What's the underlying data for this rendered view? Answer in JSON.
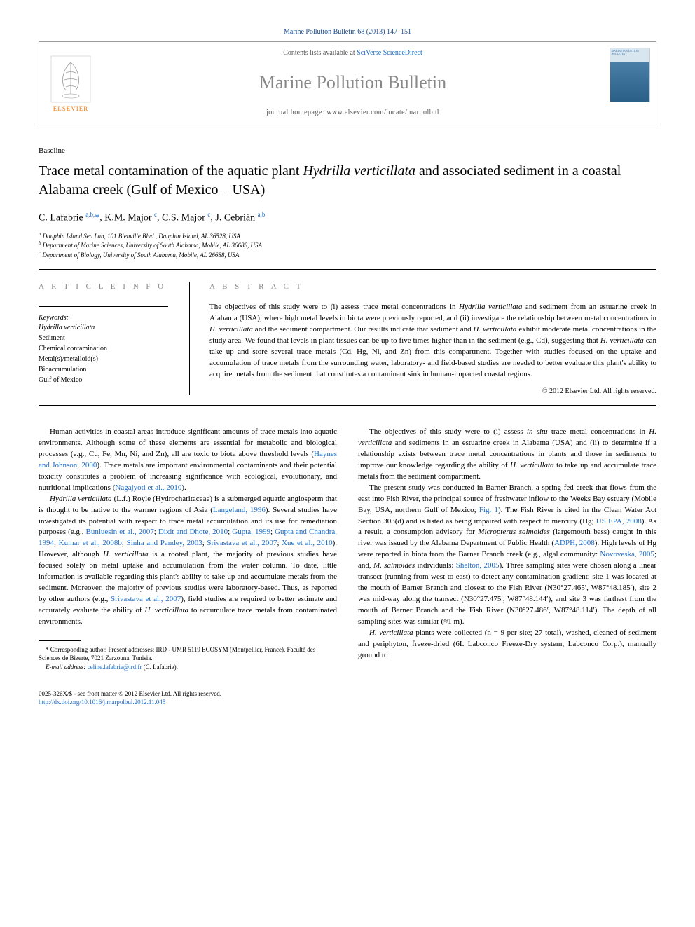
{
  "citation": "Marine Pollution Bulletin 68 (2013) 147–151",
  "header": {
    "contents_prefix": "Contents lists available at ",
    "contents_link": "SciVerse ScienceDirect",
    "journal_title": "Marine Pollution Bulletin",
    "homepage_prefix": "journal homepage: ",
    "homepage_url": "www.elsevier.com/locate/marpolbul",
    "elsevier": "ELSEVIER",
    "cover_text": "MARINE POLLUTION BULLETIN"
  },
  "section": "Baseline",
  "title_parts": {
    "a": "Trace metal contamination of the aquatic plant ",
    "b": "Hydrilla verticillata",
    "c": " and associated sediment in a coastal Alabama creek (Gulf of Mexico – USA)"
  },
  "authors_html": "C. Lafabrie <sup>a,b,</sup><a>*</a>, K.M. Major <sup>c</sup>, C.S. Major <sup>c</sup>, J. Cebrián <sup>a,b</sup>",
  "affiliations": [
    "a Dauphin Island Sea Lab, 101 Bienville Blvd., Dauphin Island, AL 36528, USA",
    "b Department of Marine Sciences, University of South Alabama, Mobile, AL 36688, USA",
    "c Department of Biology, University of South Alabama, Mobile, AL 26688, USA"
  ],
  "info_heading": "A R T I C L E   I N F O",
  "keywords_label": "Keywords:",
  "keywords": [
    "Hydrilla verticillata",
    "Sediment",
    "Chemical contamination",
    "Metal(s)/metalloid(s)",
    "Bioaccumulation",
    "Gulf of Mexico"
  ],
  "abstract_heading": "A B S T R A C T",
  "abstract": "The objectives of this study were to (i) assess trace metal concentrations in Hydrilla verticillata and sediment from an estuarine creek in Alabama (USA), where high metal levels in biota were previously reported, and (ii) investigate the relationship between metal concentrations in H. verticillata and the sediment compartment. Our results indicate that sediment and H. verticillata exhibit moderate metal concentrations in the study area. We found that levels in plant tissues can be up to five times higher than in the sediment (e.g., Cd), suggesting that H. verticillata can take up and store several trace metals (Cd, Hg, Ni, and Zn) from this compartment. Together with studies focused on the uptake and accumulation of trace metals from the surrounding water, laboratory- and field-based studies are needed to better evaluate this plant's ability to acquire metals from the sediment that constitutes a contaminant sink in human-impacted coastal regions.",
  "copyright": "© 2012 Elsevier Ltd. All rights reserved.",
  "body": {
    "left": [
      "Human activities in coastal areas introduce significant amounts of trace metals into aquatic environments. Although some of these elements are essential for metabolic and biological processes (e.g., Cu, Fe, Mn, Ni, and Zn), all are toxic to biota above threshold levels (Haynes and Johnson, 2000). Trace metals are important environmental contaminants and their potential toxicity constitutes a problem of increasing significance with ecological, evolutionary, and nutritional implications (Nagajyoti et al., 2010).",
      "Hydrilla verticillata (L.f.) Royle (Hydrocharitaceae) is a submerged aquatic angiosperm that is thought to be native to the warmer regions of Asia (Langeland, 1996). Several studies have investigated its potential with respect to trace metal accumulation and its use for remediation purposes (e.g., Bunluesin et al., 2007; Dixit and Dhote, 2010; Gupta, 1999; Gupta and Chandra, 1994; Kumar et al., 2008b; Sinha and Pandey, 2003; Srivastava et al., 2007; Xue et al., 2010). However, although H. verticillata is a rooted plant, the majority of previous studies have focused solely on metal uptake and accumulation from the water column. To date, little information is available regarding this plant's ability to take up and accumulate metals from the sediment. Moreover, the majority of previous studies were laboratory-based. Thus, as reported by other authors (e.g., Srivastava et al., 2007), field studies are required to better estimate and accurately evaluate the ability of H. verticillata to accumulate trace metals from contaminated environments."
    ],
    "right": [
      "The objectives of this study were to (i) assess in situ trace metal concentrations in H. verticillata and sediments in an estuarine creek in Alabama (USA) and (ii) to determine if a relationship exists between trace metal concentrations in plants and those in sediments to improve our knowledge regarding the ability of H. verticillata to take up and accumulate trace metals from the sediment compartment.",
      "The present study was conducted in Barner Branch, a spring-fed creek that flows from the east into Fish River, the principal source of freshwater inflow to the Weeks Bay estuary (Mobile Bay, USA, northern Gulf of Mexico; Fig. 1). The Fish River is cited in the Clean Water Act Section 303(d) and is listed as being impaired with respect to mercury (Hg; US EPA, 2008). As a result, a consumption advisory for Micropterus salmoides (largemouth bass) caught in this river was issued by the Alabama Department of Public Health (ADPH, 2008). High levels of Hg were reported in biota from the Barner Branch creek (e.g., algal community: Novoveska, 2005; and, M. salmoides individuals: Shelton, 2005). Three sampling sites were chosen along a linear transect (running from west to east) to detect any contamination gradient: site 1 was located at the mouth of Barner Branch and closest to the Fish River (N30°27.465′, W87°48.185′), site 2 was mid-way along the transect (N30°27.475′, W87°48.144′), and site 3 was farthest from the mouth of Barner Branch and the Fish River (N30°27.486′, W87°48.114′). The depth of all sampling sites was similar (≈1 m).",
      "H. verticillata plants were collected (n = 9 per site; 27 total), washed, cleaned of sediment and periphyton, freeze-dried (6L Labconco Freeze-Dry system, Labconco Corp.), manually ground to"
    ]
  },
  "footnotes": {
    "corr": "* Corresponding author. Present addresses: IRD - UMR 5119 ECOSYM (Montpellier, France), Faculté des Sciences de Bizerte, 7021 Zarzouna, Tunisia.",
    "email_label": "E-mail address: ",
    "email": "celine.lafabrie@ird.fr",
    "email_suffix": " (C. Lafabrie)."
  },
  "footer": {
    "line1": "0025-326X/$ - see front matter © 2012 Elsevier Ltd. All rights reserved.",
    "doi": "http://dx.doi.org/10.1016/j.marpolbul.2012.11.045"
  },
  "colors": {
    "link": "#1a6bc7",
    "elsevier_orange": "#ff7a00",
    "gray_heading": "#888888"
  }
}
